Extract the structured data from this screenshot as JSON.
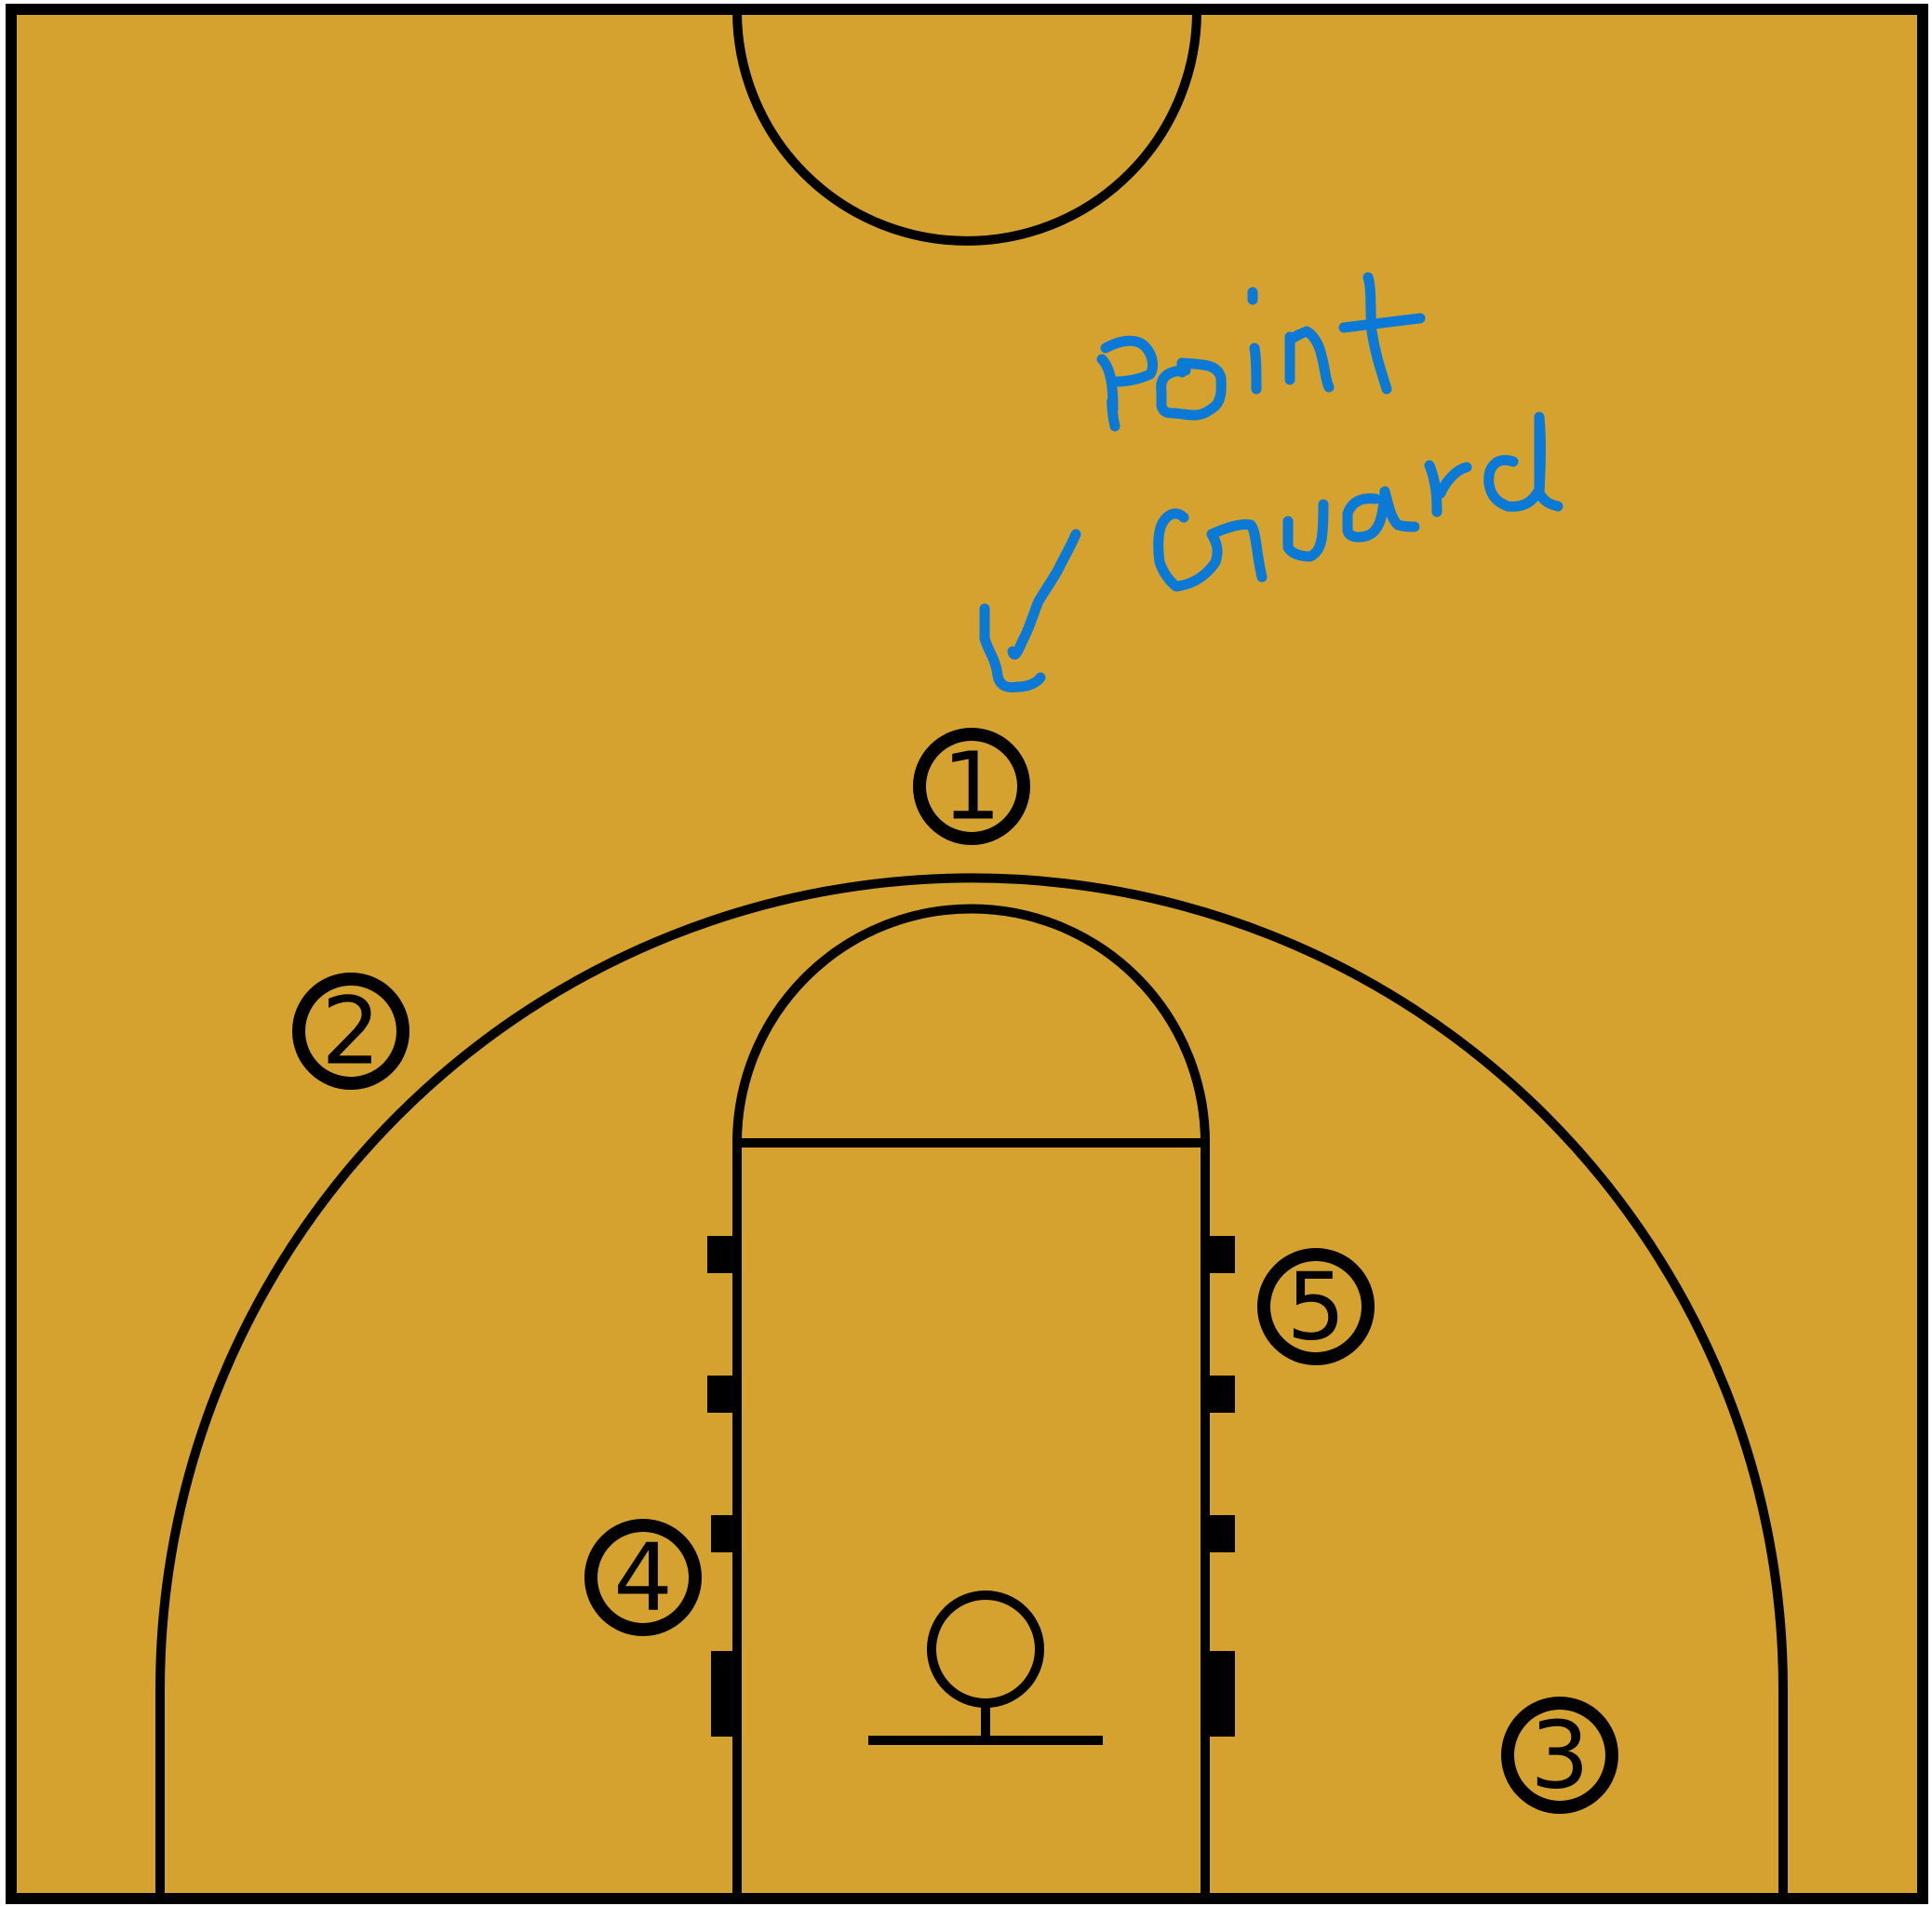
{
  "court": {
    "floor_color": "#D6A22F",
    "line_color": "#000000",
    "annotation_color": "#0A7AD6"
  },
  "players": [
    {
      "number": "1"
    },
    {
      "number": "2"
    },
    {
      "number": "3"
    },
    {
      "number": "4"
    },
    {
      "number": "5"
    }
  ],
  "annotation": {
    "word_1": "Point",
    "word_2": "Guard",
    "style": "handwritten",
    "points_to_player": "1"
  }
}
